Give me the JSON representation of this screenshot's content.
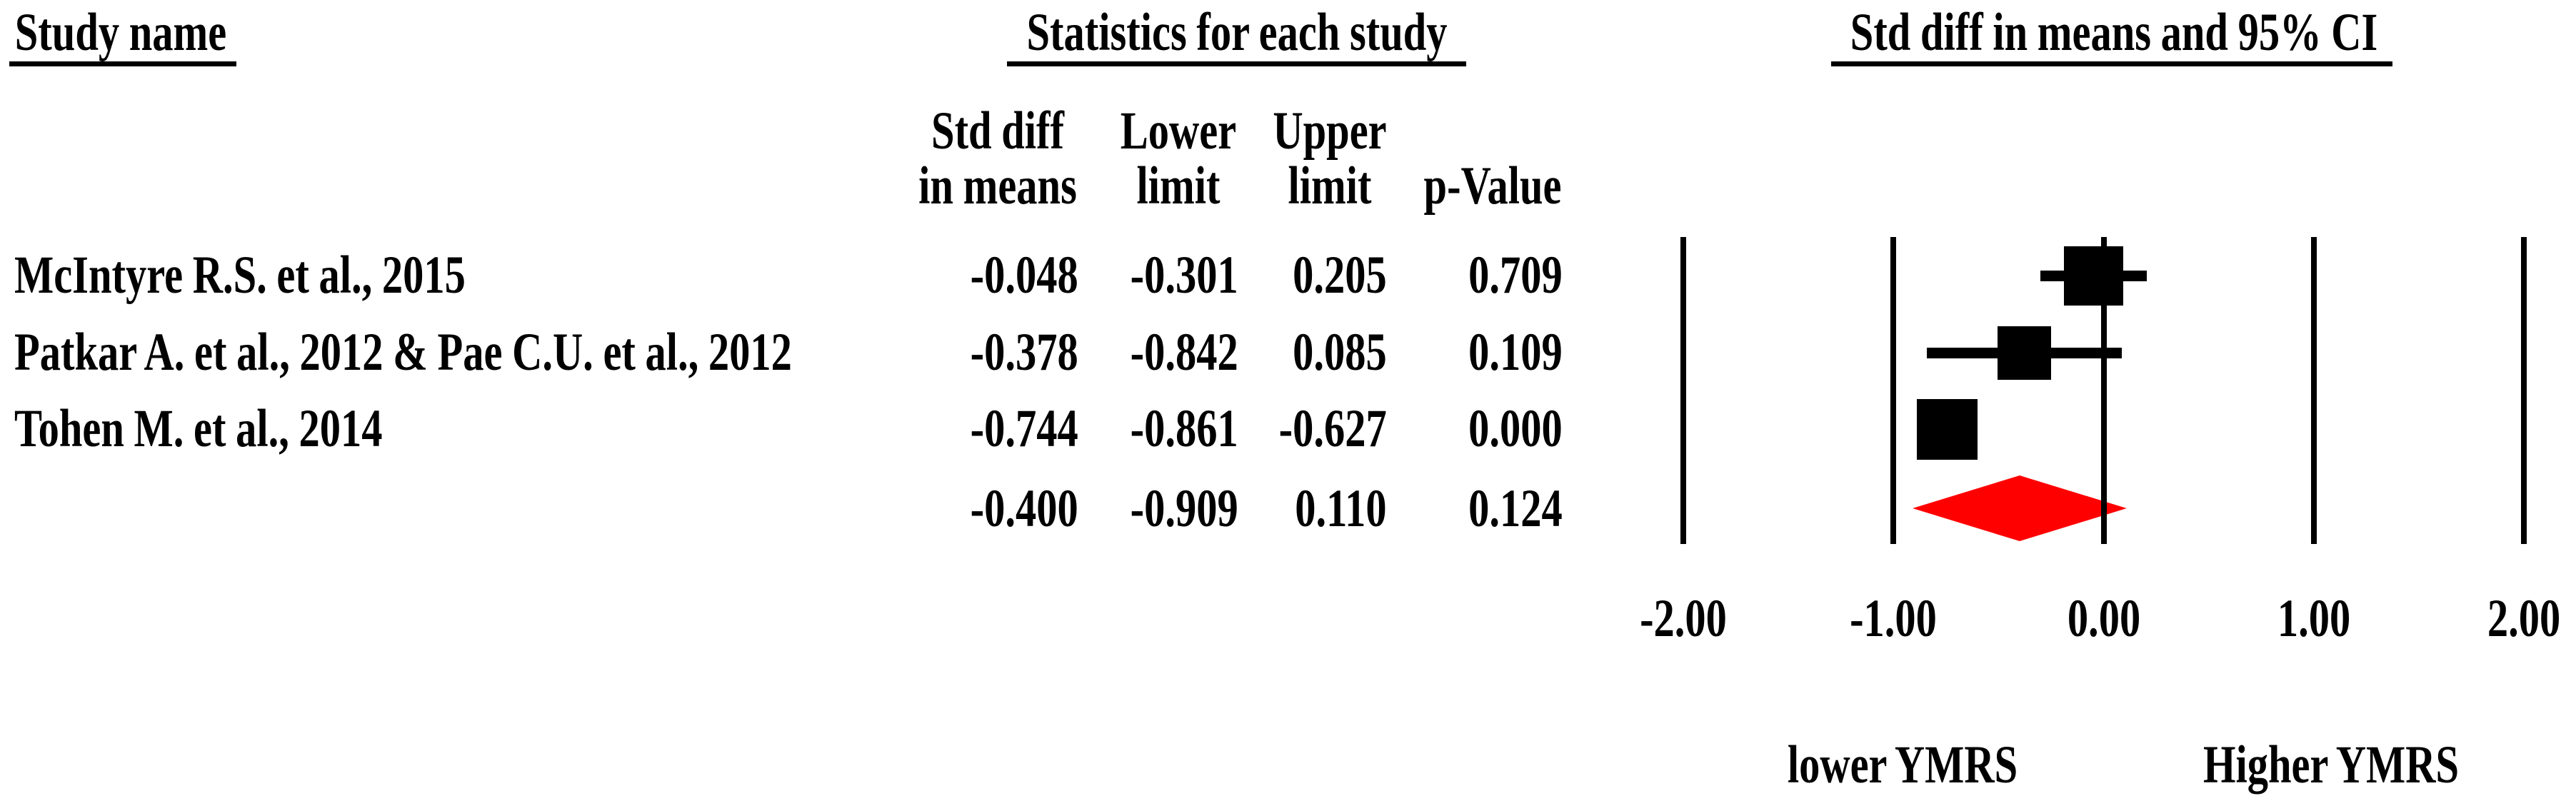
{
  "figure": {
    "background": "#ffffff",
    "study_col_header": "Study name",
    "stats_col_header": "Statistics for each study",
    "plot_col_header": "Std diff in means and 95% CI"
  },
  "stats_columns": [
    {
      "line1": "Std diff",
      "line2": "in means"
    },
    {
      "line1": "Lower",
      "line2": "limit"
    },
    {
      "line1": "Upper",
      "line2": "limit"
    },
    {
      "line1": "",
      "line2": "p-Value"
    }
  ],
  "rows": [
    {
      "study": "McIntyre R.S. et al., 2015",
      "std_diff": "-0.048",
      "lower": "-0.301",
      "upper": "0.205",
      "p_value": "0.709"
    },
    {
      "study": "Patkar A. et al., 2012 & Pae C.U. et al., 2012",
      "std_diff": "-0.378",
      "lower": "-0.842",
      "upper": "0.085",
      "p_value": "0.109"
    },
    {
      "study": "Tohen M. et al., 2014",
      "std_diff": "-0.744",
      "lower": "-0.861",
      "upper": "-0.627",
      "p_value": "0.000"
    },
    {
      "study": "",
      "std_diff": "-0.400",
      "lower": "-0.909",
      "upper": "0.110",
      "p_value": "0.124"
    }
  ],
  "chart_data": {
    "type": "forest",
    "title": "Std diff in means and 95% CI",
    "xlim": [
      -2,
      2
    ],
    "axis_values": [
      -2,
      -1,
      0,
      1,
      2
    ],
    "axis_ticks": [
      "-2.00",
      "-1.00",
      "0.00",
      "1.00",
      "2.00"
    ],
    "grid": false,
    "studies": [
      {
        "name": "McIntyre R.S. et al., 2015",
        "mean": -0.048,
        "lower": -0.301,
        "upper": 0.205,
        "p_value": 0.709,
        "marker_size_px": 83
      },
      {
        "name": "Patkar A. et al., 2012 & Pae C.U. et al., 2012",
        "mean": -0.378,
        "lower": -0.842,
        "upper": 0.085,
        "p_value": 0.109,
        "marker_size_px": 75
      },
      {
        "name": "Tohen M. et al., 2014",
        "mean": -0.744,
        "lower": -0.861,
        "upper": -0.627,
        "p_value": 0.0,
        "marker_size_px": 85
      }
    ],
    "summary": {
      "mean": -0.4,
      "lower": -0.909,
      "upper": 0.11,
      "p_value": 0.124
    },
    "direction_labels": {
      "left": "lower YMRS",
      "right": "Higher YMRS"
    },
    "colors": {
      "study_marker": "#000000",
      "summary_diamond": "#ff0000",
      "axis_line": "#000000"
    }
  }
}
